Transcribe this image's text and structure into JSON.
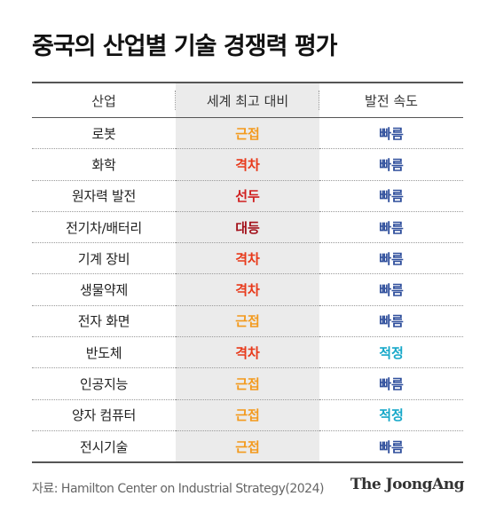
{
  "title": "중국의 산업별 기술 경쟁력 평가",
  "chart_data": {
    "type": "table",
    "columns": [
      "산업",
      "세계 최고 대비",
      "발전 속도"
    ],
    "rows": [
      {
        "sector": "로봇",
        "level": "근접",
        "speed": "빠름"
      },
      {
        "sector": "화학",
        "level": "격차",
        "speed": "빠름"
      },
      {
        "sector": "원자력 발전",
        "level": "선두",
        "speed": "빠름"
      },
      {
        "sector": "전기차/배터리",
        "level": "대등",
        "speed": "빠름"
      },
      {
        "sector": "기계 장비",
        "level": "격차",
        "speed": "빠름"
      },
      {
        "sector": "생물약제",
        "level": "격차",
        "speed": "빠름"
      },
      {
        "sector": "전자 화면",
        "level": "근접",
        "speed": "빠름"
      },
      {
        "sector": "반도체",
        "level": "격차",
        "speed": "적정"
      },
      {
        "sector": "인공지능",
        "level": "근접",
        "speed": "빠름"
      },
      {
        "sector": "양자 컴퓨터",
        "level": "근접",
        "speed": "적정"
      },
      {
        "sector": "전시기술",
        "level": "근접",
        "speed": "빠름"
      }
    ],
    "level_colors": {
      "근접": "#f39a1e",
      "격차": "#e8391a",
      "선두": "#d01f1f",
      "대등": "#a3121c"
    },
    "speed_colors": {
      "빠름": "#2f4f9c",
      "적정": "#17a8c9"
    }
  },
  "source": "자료: Hamilton Center on Industrial Strategy(2024)",
  "logo": "The JoongAng"
}
